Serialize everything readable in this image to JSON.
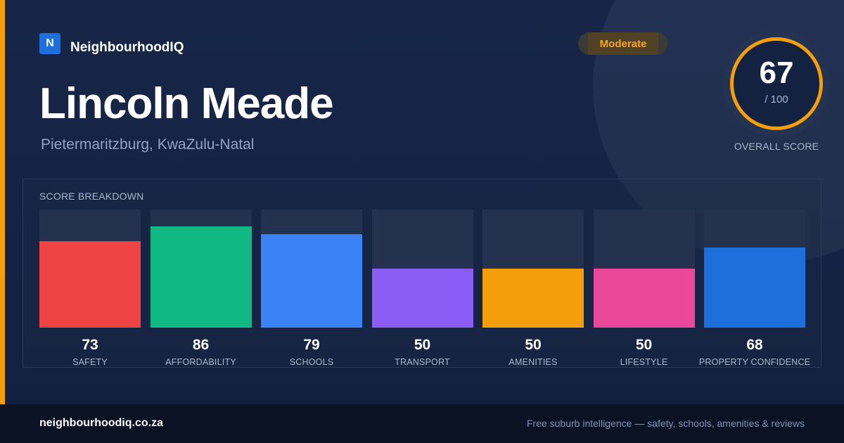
{
  "brand": {
    "logo_letter": "N",
    "name": "NeighbourhoodIQ"
  },
  "badge": {
    "label": "Moderate",
    "color": "#f59e0b"
  },
  "suburb": {
    "name": "Lincoln Meade",
    "location": "Pietermaritzburg, KwaZulu-Natal"
  },
  "overall": {
    "score": "67",
    "max": "/ 100",
    "label": "OVERALL SCORE",
    "accent": "#f59e0b"
  },
  "breakdown": {
    "title": "SCORE BREAKDOWN",
    "max_score": 100,
    "items": [
      {
        "label": "SAFETY",
        "value": 73,
        "color": "#ef4444"
      },
      {
        "label": "AFFORDABILITY",
        "value": 86,
        "color": "#10b981"
      },
      {
        "label": "SCHOOLS",
        "value": 79,
        "color": "#3b82f6"
      },
      {
        "label": "TRANSPORT",
        "value": 50,
        "color": "#8b5cf6"
      },
      {
        "label": "AMENITIES",
        "value": 50,
        "color": "#f59e0b"
      },
      {
        "label": "LIFESTYLE",
        "value": 50,
        "color": "#ec4899"
      },
      {
        "label": "PROPERTY CONFIDENCE",
        "value": 68,
        "color": "#1e6fdb"
      }
    ]
  },
  "footer": {
    "domain": "neighbourhoodiq.co.za",
    "tagline": "Free suburb intelligence — safety, schools, amenities & reviews"
  }
}
